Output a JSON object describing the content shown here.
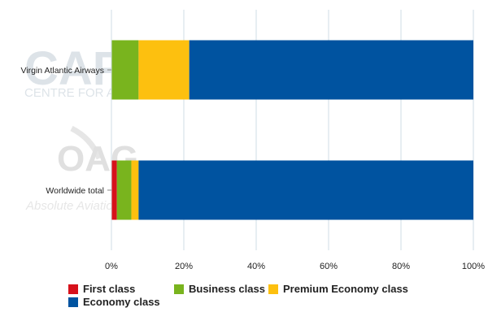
{
  "chart_data": {
    "type": "bar",
    "orientation": "horizontal",
    "stacked": true,
    "percent": true,
    "categories": [
      "Virgin Atlantic Airways",
      "Worldwide total"
    ],
    "series": [
      {
        "name": "First class",
        "values": [
          0,
          1.5
        ],
        "color": "#d7111b"
      },
      {
        "name": "Business class",
        "values": [
          7.5,
          4.0
        ],
        "color": "#79b41e"
      },
      {
        "name": "Premium Economy class",
        "values": [
          14.0,
          2.0
        ],
        "color": "#fdc00f"
      },
      {
        "name": "Economy class",
        "values": [
          78.5,
          92.5
        ],
        "color": "#0053a0"
      }
    ],
    "x_ticks": [
      "0%",
      "20%",
      "40%",
      "60%",
      "80%",
      "100%"
    ],
    "xlim": [
      0,
      100
    ],
    "grid": true,
    "legend_position": "bottom"
  },
  "watermarks": {
    "capa_logo": "CAPA",
    "capa_sub": "CENTRE FOR AVIATION",
    "oag_logo": "OAG",
    "oag_tagline": "Absolute Aviation"
  }
}
